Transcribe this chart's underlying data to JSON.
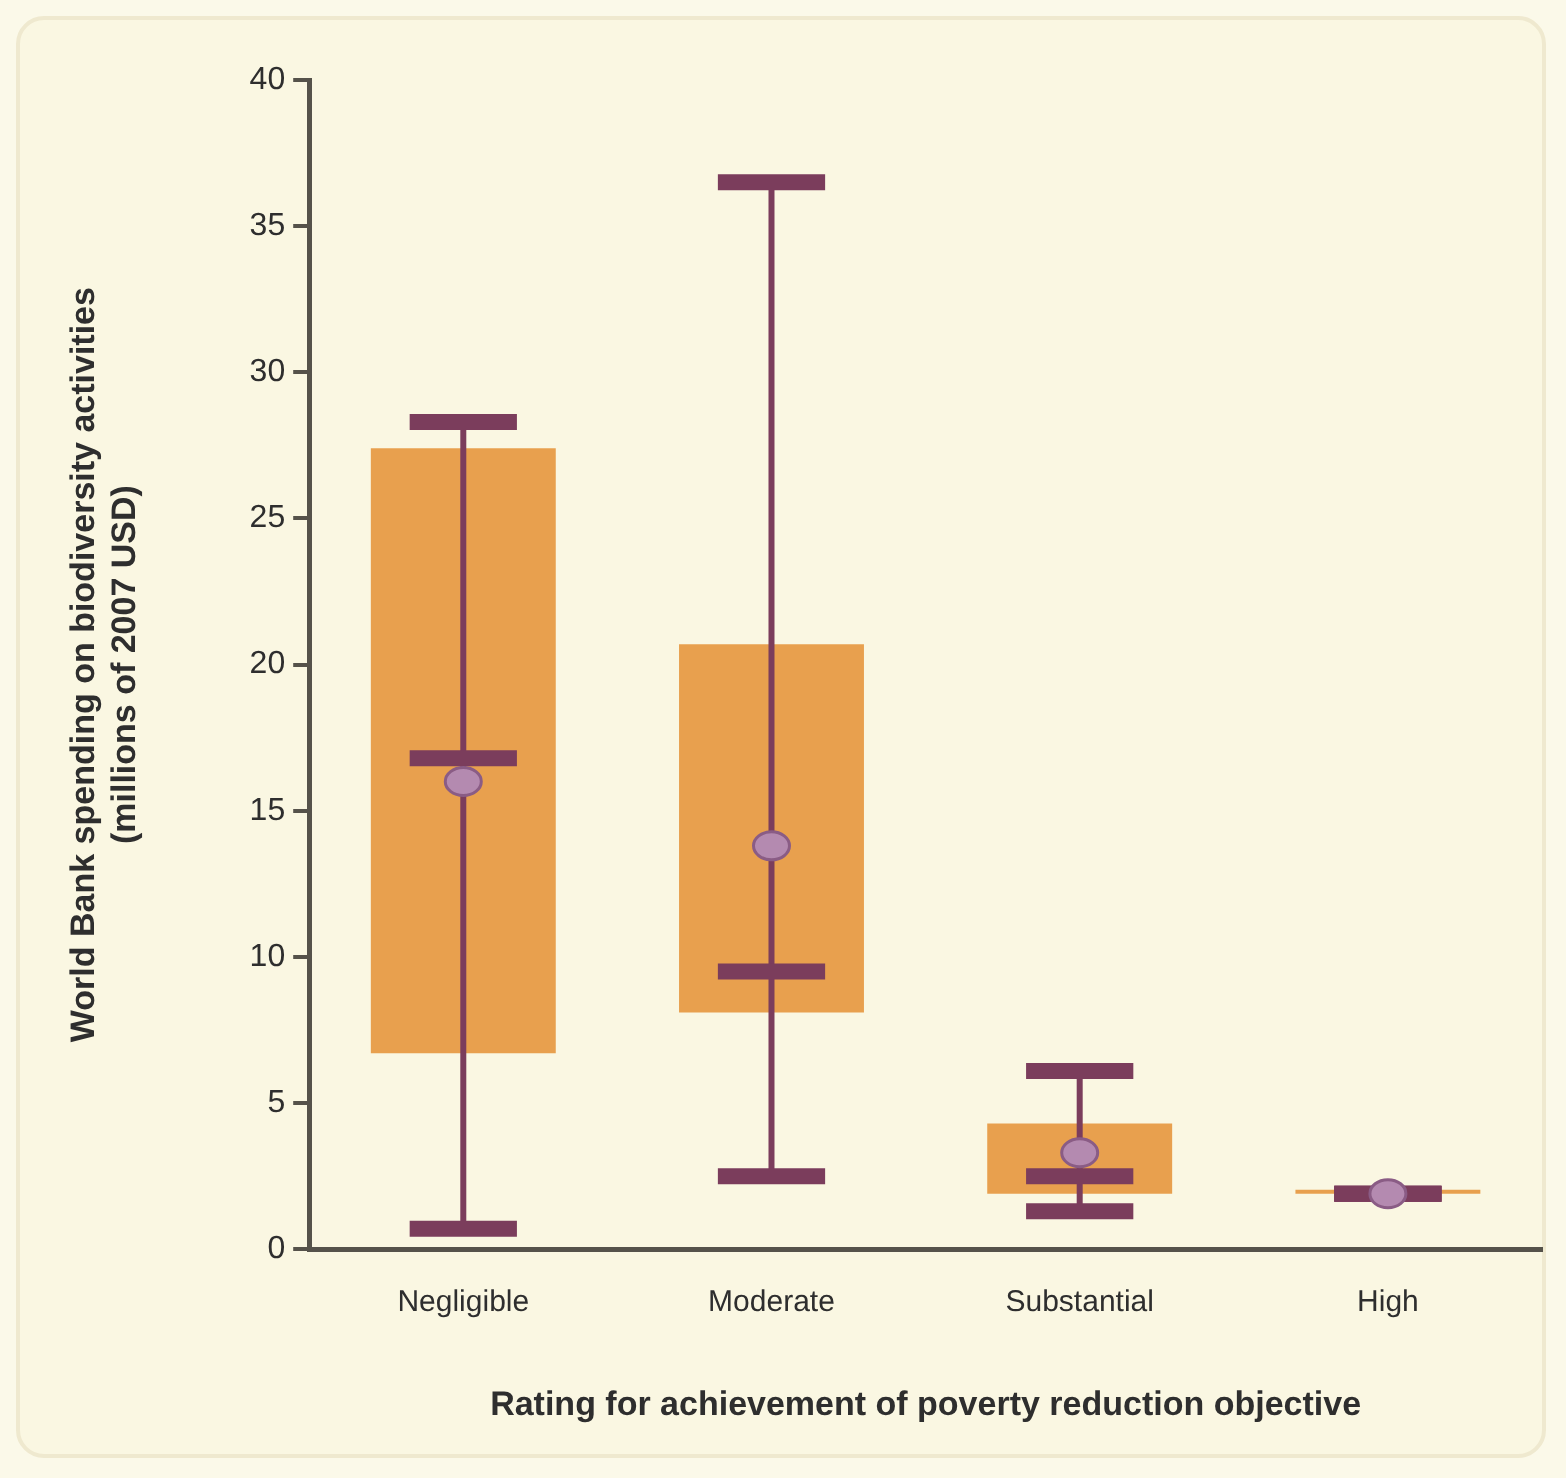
{
  "chart_data": {
    "type": "box",
    "xlabel": "Rating for achievement of poverty reduction objective",
    "ylabel": "World Bank spending on biodiversity activities\n(millions of 2007 USD)",
    "categories": [
      "Negligible",
      "Moderate",
      "Substantial",
      "High"
    ],
    "color": "#e8a04e",
    "boxes": [
      {
        "low": 0.7,
        "q1": 6.7,
        "median": 16.8,
        "q3": 27.4,
        "high": 28.3,
        "mean": 16.0
      },
      {
        "low": 2.5,
        "q1": 8.1,
        "median": 9.5,
        "q3": 20.7,
        "high": 36.5,
        "mean": 13.8
      },
      {
        "low": 1.3,
        "q1": 1.9,
        "median": 2.5,
        "q3": 4.3,
        "high": 6.1,
        "mean": 3.3
      },
      {
        "low": 1.9,
        "q1": 1.9,
        "median": 1.9,
        "q3": 1.9,
        "high": 1.9,
        "mean": 1.9
      }
    ],
    "ylim": [
      0,
      40
    ],
    "yticks": [
      0,
      5,
      10,
      15,
      20,
      25,
      30,
      35,
      40
    ]
  }
}
